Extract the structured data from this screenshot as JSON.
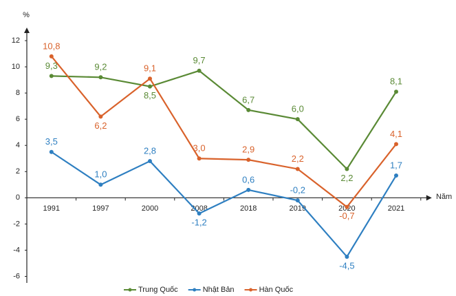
{
  "chart_data": {
    "type": "line",
    "y_label": "%",
    "x_label": "Năm",
    "categories": [
      "1991",
      "1997",
      "2000",
      "2008",
      "2018",
      "2019",
      "2020",
      "2021"
    ],
    "series": [
      {
        "name": "Trung Quốc",
        "color": "#5a8a35",
        "values": [
          9.3,
          9.2,
          8.5,
          9.7,
          6.7,
          6.0,
          2.2,
          8.1
        ],
        "value_labels": [
          "9,3",
          "9,2",
          "8,5",
          "9,7",
          "6,7",
          "6,0",
          "2,2",
          "8,1"
        ]
      },
      {
        "name": "Nhật Bản",
        "color": "#2e7fc1",
        "values": [
          3.5,
          1.0,
          2.8,
          -1.2,
          0.6,
          -0.2,
          -4.5,
          1.7
        ],
        "value_labels": [
          "3,5",
          "1,0",
          "2,8",
          "-1,2",
          "0,6",
          "-0,2",
          "-4,5",
          "1,7"
        ]
      },
      {
        "name": "Hàn Quốc",
        "color": "#d9622b",
        "values": [
          10.8,
          6.2,
          9.1,
          3.0,
          2.9,
          2.2,
          -0.7,
          4.1
        ],
        "value_labels": [
          "10,8",
          "6,2",
          "9,1",
          "3,0",
          "2,9",
          "2,2",
          "-0,7",
          "4,1"
        ]
      }
    ],
    "ylim": [
      -6.5,
      13
    ],
    "yticks": [
      -6,
      -4,
      -2,
      0,
      2,
      4,
      6,
      8,
      10,
      12
    ],
    "grid": false
  }
}
